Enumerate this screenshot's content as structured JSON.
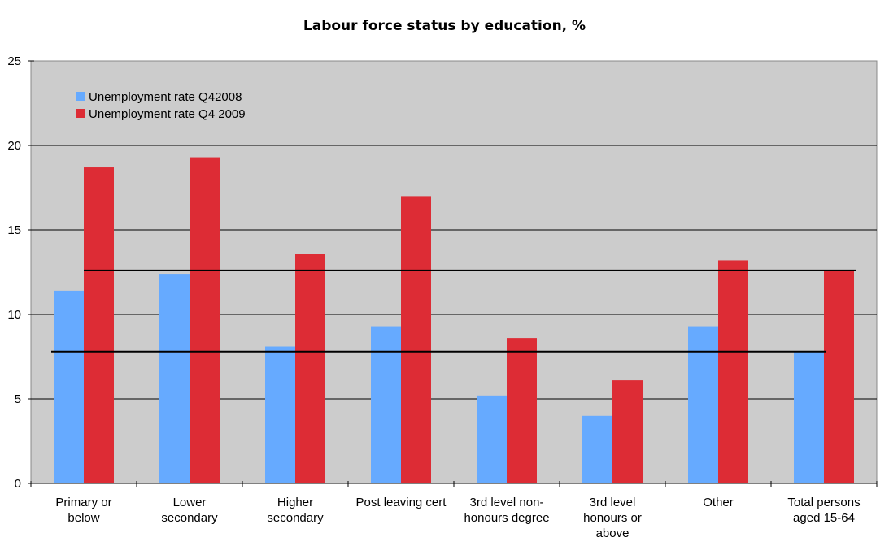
{
  "chart_data": {
    "type": "bar",
    "title": "Labour force status by education, %",
    "xlabel": "",
    "ylabel": "",
    "ylim": [
      0,
      25
    ],
    "yticks": [
      "0",
      "5",
      "10",
      "15",
      "20",
      "25"
    ],
    "categories": [
      [
        "Primary or",
        "below"
      ],
      [
        "Lower",
        "secondary"
      ],
      [
        "Higher",
        "secondary"
      ],
      [
        "Post leaving cert"
      ],
      [
        "3rd level non-",
        "honours degree"
      ],
      [
        "3rd level",
        "honours or",
        "above"
      ],
      [
        "Other"
      ],
      [
        "Total persons",
        "aged 15-64"
      ]
    ],
    "series": [
      {
        "name": "Unemployment rate Q42008",
        "color": "#66aaff",
        "values": [
          11.4,
          12.4,
          8.1,
          9.3,
          5.2,
          4.0,
          9.3,
          7.8
        ]
      },
      {
        "name": "Unemployment rate Q4 2009",
        "color": "#dd2c35",
        "values": [
          18.7,
          19.3,
          13.6,
          17.0,
          8.6,
          6.1,
          13.2,
          12.6
        ]
      }
    ],
    "reference_lines": [
      7.8,
      12.6
    ],
    "grid": true,
    "legend_position": "top-left",
    "plot_background": "#cccccc"
  }
}
